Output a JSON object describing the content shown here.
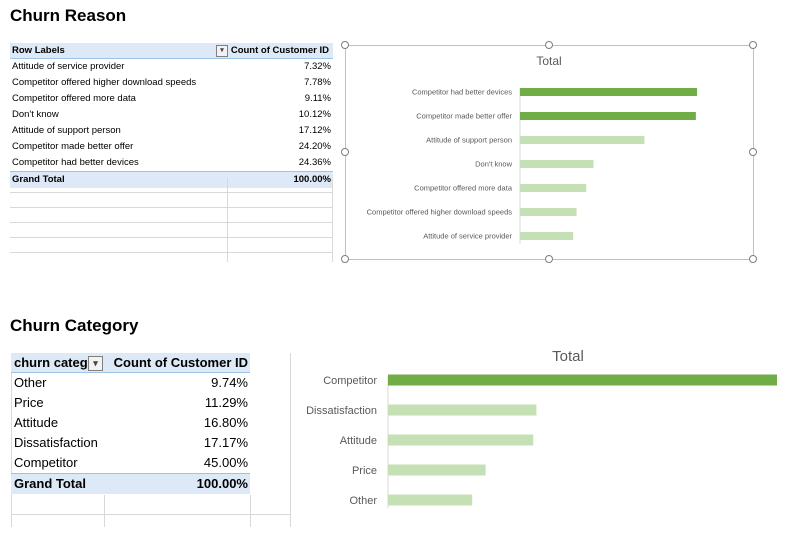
{
  "section1": {
    "title": "Churn Reason",
    "pivot": {
      "header_label": "Row Labels",
      "header_value": "Count of Customer ID",
      "filter_icon": "filter-icon",
      "rows": [
        {
          "label": "Attitude of service provider",
          "value": "7.32%"
        },
        {
          "label": "Competitor offered higher download speeds",
          "value": "7.78%"
        },
        {
          "label": "Competitor offered more data",
          "value": "9.11%"
        },
        {
          "label": "Don't know",
          "value": "10.12%"
        },
        {
          "label": "Attitude of support person",
          "value": "17.12%"
        },
        {
          "label": "Competitor made better offer",
          "value": "24.20%"
        },
        {
          "label": "Competitor had better devices",
          "value": "24.36%"
        }
      ],
      "total_label": "Grand Total",
      "total_value": "100.00%"
    }
  },
  "section2": {
    "title": "Churn Category",
    "pivot": {
      "header_label": "churn categ",
      "header_value": "Count of Customer ID",
      "filter_icon": "filter-icon",
      "rows": [
        {
          "label": "Other",
          "value": "9.74%"
        },
        {
          "label": "Price",
          "value": "11.29%"
        },
        {
          "label": "Attitude",
          "value": "16.80%"
        },
        {
          "label": "Dissatisfaction",
          "value": "17.17%"
        },
        {
          "label": "Competitor",
          "value": "45.00%"
        }
      ],
      "total_label": "Grand Total",
      "total_value": "100.00%"
    }
  },
  "colors": {
    "highlight_bar": "#70ad47",
    "normal_bar": "#c5e0b4",
    "header_fill": "#dde9f6"
  },
  "chart_data": [
    {
      "type": "bar",
      "orientation": "horizontal",
      "title": "Total",
      "categories": [
        "Competitor had better devices",
        "Competitor made better offer",
        "Attitude of support person",
        "Don't know",
        "Competitor offered more data",
        "Competitor offered higher download speeds",
        "Attitude of service provider"
      ],
      "values": [
        24.36,
        24.2,
        17.12,
        10.12,
        9.11,
        7.78,
        7.32
      ],
      "highlighted": [
        true,
        true,
        false,
        false,
        false,
        false,
        false
      ],
      "xlim": [
        0,
        30
      ],
      "xlabel": "",
      "ylabel": "",
      "legend": "none"
    },
    {
      "type": "bar",
      "orientation": "horizontal",
      "title": "Total",
      "categories": [
        "Competitor",
        "Dissatisfaction",
        "Attitude",
        "Price",
        "Other"
      ],
      "values": [
        45.0,
        17.17,
        16.8,
        11.29,
        9.74
      ],
      "highlighted": [
        true,
        false,
        false,
        false,
        false
      ],
      "xlim": [
        0,
        45
      ],
      "xlabel": "",
      "ylabel": "",
      "legend": "none"
    }
  ]
}
